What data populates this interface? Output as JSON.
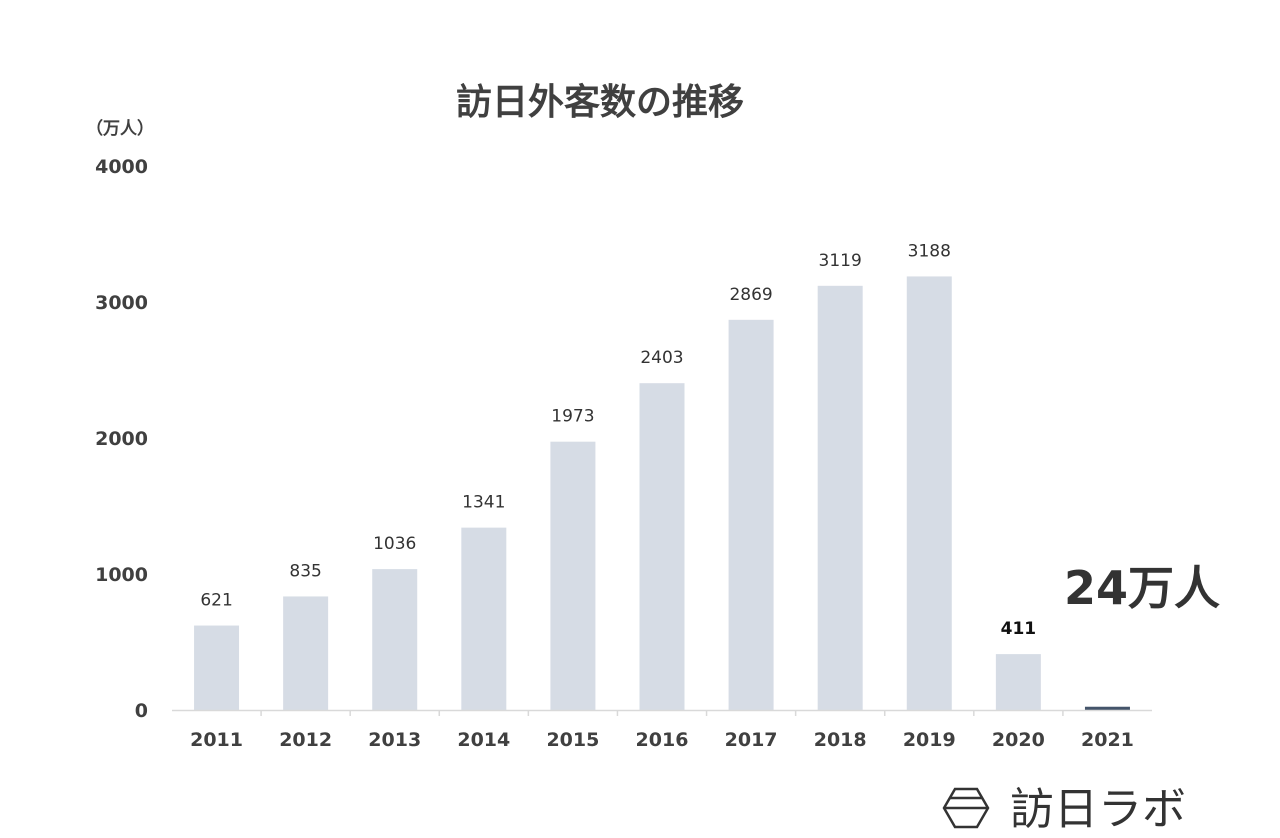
{
  "chart_data": {
    "type": "bar",
    "title": "訪日外客数の推移",
    "ylabel": "（万人）",
    "xlabel": "",
    "ylim": [
      0,
      4000
    ],
    "yticks": [
      0,
      1000,
      2000,
      3000,
      4000
    ],
    "categories": [
      "2011",
      "2012",
      "2013",
      "2014",
      "2015",
      "2016",
      "2017",
      "2018",
      "2019",
      "2020",
      "2021"
    ],
    "values": [
      621,
      835,
      1036,
      1341,
      1973,
      2403,
      2869,
      3119,
      3188,
      411,
      24
    ],
    "data_labels": [
      "621",
      "835",
      "1036",
      "1341",
      "1973",
      "2403",
      "2869",
      "3119",
      "3188",
      "411",
      ""
    ],
    "annotation": "24万人",
    "grid": false,
    "legend": "none"
  },
  "colors": {
    "bar": "#d6dce5",
    "bar_highlight": "#44546a",
    "axis": "#d9d9d9",
    "text": "#404040"
  },
  "logo": {
    "text": "訪日ラボ",
    "icon": "hexagon-logo-icon"
  }
}
